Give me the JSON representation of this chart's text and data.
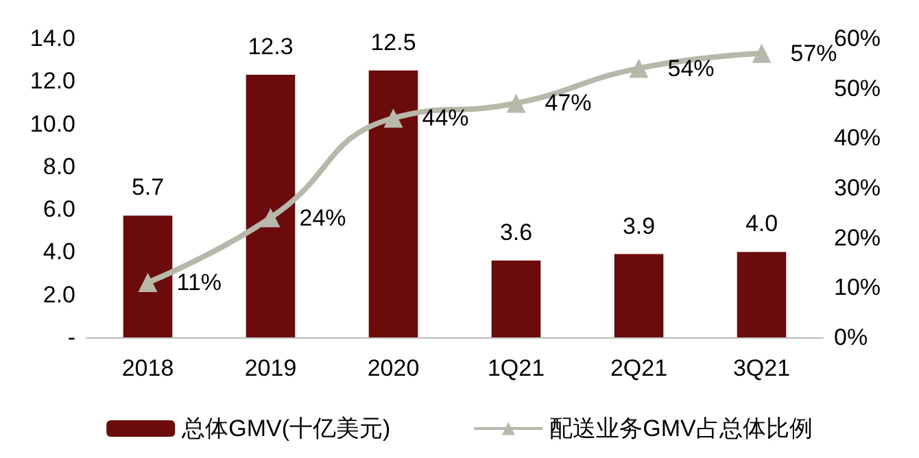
{
  "chart_data": {
    "type": "bar",
    "categories": [
      "2018",
      "2019",
      "2020",
      "1Q21",
      "2Q21",
      "3Q21"
    ],
    "series": [
      {
        "name": "总体GMV(十亿美元)",
        "color": "#6b0b0b",
        "values": [
          5.7,
          12.3,
          12.5,
          3.6,
          3.9,
          4.0
        ],
        "value_labels": [
          "5.7",
          "12.3",
          "12.5",
          "3.6",
          "3.9",
          "4.0"
        ]
      },
      {
        "name": "配送业务GMV占总体比例",
        "type": "line",
        "axis": "y2",
        "color": "#b8b8aa",
        "marker": "triangle",
        "values": [
          11,
          24,
          44,
          47,
          54,
          57
        ],
        "value_labels": [
          "11%",
          "24%",
          "44%",
          "47%",
          "54%",
          "57%"
        ]
      }
    ],
    "ylim": [
      0,
      14
    ],
    "yticks": [
      {
        "value": 0,
        "label": "-"
      },
      {
        "value": 2,
        "label": "2.0"
      },
      {
        "value": 4,
        "label": "4.0"
      },
      {
        "value": 6,
        "label": "6.0"
      },
      {
        "value": 8,
        "label": "8.0"
      },
      {
        "value": 10,
        "label": "10.0"
      },
      {
        "value": 12,
        "label": "12.0"
      },
      {
        "value": 14,
        "label": "14.0"
      }
    ],
    "y2lim": [
      0,
      60
    ],
    "y2ticks": [
      {
        "value": 0,
        "label": "0%"
      },
      {
        "value": 10,
        "label": "10%"
      },
      {
        "value": 20,
        "label": "20%"
      },
      {
        "value": 30,
        "label": "30%"
      },
      {
        "value": 40,
        "label": "40%"
      },
      {
        "value": 50,
        "label": "50%"
      },
      {
        "value": 60,
        "label": "60%"
      }
    ],
    "grid": false,
    "legend": "bottom"
  }
}
